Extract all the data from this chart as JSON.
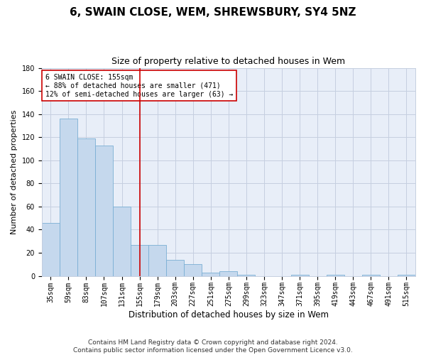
{
  "title": "6, SWAIN CLOSE, WEM, SHREWSBURY, SY4 5NZ",
  "subtitle": "Size of property relative to detached houses in Wem",
  "xlabel": "Distribution of detached houses by size in Wem",
  "ylabel": "Number of detached properties",
  "categories": [
    "35sqm",
    "59sqm",
    "83sqm",
    "107sqm",
    "131sqm",
    "155sqm",
    "179sqm",
    "203sqm",
    "227sqm",
    "251sqm",
    "275sqm",
    "299sqm",
    "323sqm",
    "347sqm",
    "371sqm",
    "395sqm",
    "419sqm",
    "443sqm",
    "467sqm",
    "491sqm",
    "515sqm"
  ],
  "values": [
    46,
    136,
    119,
    113,
    60,
    27,
    27,
    14,
    10,
    3,
    4,
    1,
    0,
    0,
    1,
    0,
    1,
    0,
    1,
    0,
    1
  ],
  "bar_color": "#c5d8ed",
  "bar_edge_color": "#7aafd4",
  "vline_x_index": 5,
  "vline_color": "#cc0000",
  "annotation_text": "6 SWAIN CLOSE: 155sqm\n← 88% of detached houses are smaller (471)\n12% of semi-detached houses are larger (63) →",
  "annotation_box_color": "#ffffff",
  "annotation_box_edge": "#cc0000",
  "ylim": [
    0,
    180
  ],
  "yticks": [
    0,
    20,
    40,
    60,
    80,
    100,
    120,
    140,
    160,
    180
  ],
  "footer": "Contains HM Land Registry data © Crown copyright and database right 2024.\nContains public sector information licensed under the Open Government Licence v3.0.",
  "title_fontsize": 11,
  "subtitle_fontsize": 9,
  "xlabel_fontsize": 8.5,
  "ylabel_fontsize": 8,
  "tick_fontsize": 7,
  "footer_fontsize": 6.5,
  "background_color": "#e8eef8"
}
